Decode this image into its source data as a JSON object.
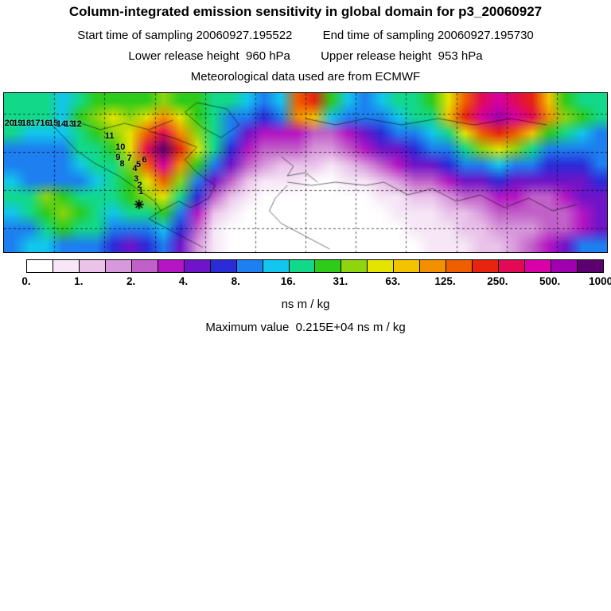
{
  "header": {
    "title": "Column-integrated emission sensitivity in global domain for p3_20060927",
    "start_time": "Start time of sampling 20060927.195522",
    "end_time": "End time of sampling 20060927.195730",
    "lower_release": "Lower release height  960 hPa",
    "upper_release": "Upper release height  953 hPa",
    "met_line": "Meteorological data used are from ECMWF"
  },
  "chart_data": {
    "type": "heatmap",
    "title": "Column-integrated emission sensitivity in global domain for p3_20060927",
    "units": "ns m / kg",
    "max_value_label": "Maximum value  0.215E+04 ns m / kg",
    "max_value": "0.215E+04",
    "layout": {
      "projection": "global cylindrical map, dashed graticule, black border",
      "legend_position": "bottom colorbar",
      "grid": "dashed"
    },
    "colorbar": {
      "tick_labels": [
        "0.",
        "1.",
        "2.",
        "4.",
        "8.",
        "16.",
        "31.",
        "63.",
        "125.",
        "250.",
        "500.",
        "1000."
      ],
      "levels": [
        0,
        1,
        2,
        4,
        8,
        16,
        31,
        63,
        125,
        250,
        500,
        1000
      ],
      "colors": [
        "#ffffff",
        "#f6e6f6",
        "#eac2ea",
        "#d898dc",
        "#c160c8",
        "#b515c2",
        "#6f14c8",
        "#2b2bd8",
        "#1d7ff0",
        "#12c6ee",
        "#12d98a",
        "#2ecb1a",
        "#8ed50f",
        "#e5e400",
        "#f3c300",
        "#f39000",
        "#ef5f00",
        "#e82410",
        "#e20a57",
        "#d800a6",
        "#a100b0",
        "#5c0070"
      ]
    },
    "grid": {
      "cols": 36,
      "rows": 10,
      "values": [
        [
          18,
          18,
          16,
          14,
          20,
          25,
          28,
          25,
          30,
          35,
          30,
          25,
          20,
          16,
          12,
          10,
          12,
          150,
          200,
          30,
          12,
          10,
          12,
          16,
          20,
          25,
          60,
          150,
          300,
          400,
          350,
          200,
          80,
          30,
          20,
          16
        ],
        [
          20,
          18,
          16,
          14,
          25,
          40,
          60,
          40,
          60,
          100,
          60,
          30,
          20,
          10,
          8,
          6,
          8,
          100,
          80,
          12,
          8,
          8,
          10,
          12,
          16,
          20,
          80,
          200,
          400,
          500,
          400,
          250,
          100,
          40,
          25,
          20
        ],
        [
          16,
          14,
          12,
          12,
          20,
          30,
          40,
          60,
          150,
          300,
          100,
          40,
          16,
          8,
          4,
          3,
          3,
          3,
          2,
          2,
          3,
          4,
          6,
          8,
          10,
          12,
          20,
          60,
          150,
          200,
          150,
          80,
          30,
          16,
          12,
          10
        ],
        [
          10,
          10,
          8,
          8,
          16,
          20,
          30,
          60,
          300,
          800,
          200,
          60,
          20,
          6,
          3,
          2,
          2,
          2,
          1.5,
          1.5,
          2,
          3,
          4,
          5,
          6,
          8,
          10,
          20,
          40,
          60,
          40,
          20,
          10,
          8,
          8,
          8
        ],
        [
          10,
          8,
          8,
          8,
          12,
          16,
          20,
          40,
          150,
          400,
          100,
          30,
          10,
          4,
          2,
          1.5,
          1,
          1,
          1,
          0.8,
          1,
          1.5,
          2,
          3,
          4,
          5,
          6,
          8,
          10,
          12,
          10,
          8,
          6,
          6,
          6,
          8
        ],
        [
          12,
          10,
          8,
          8,
          10,
          12,
          16,
          25,
          60,
          150,
          40,
          10,
          4,
          2,
          1,
          0.8,
          0.6,
          0.5,
          0.4,
          0.4,
          0.5,
          0.8,
          1,
          1.5,
          2,
          2.5,
          3,
          4,
          5,
          6,
          5,
          4,
          4,
          4,
          5,
          6
        ],
        [
          16,
          20,
          40,
          30,
          20,
          16,
          20,
          30,
          40,
          60,
          20,
          6,
          2,
          1,
          0.6,
          0.4,
          0.3,
          0.2,
          0.2,
          0.2,
          0.3,
          0.4,
          0.6,
          0.8,
          1,
          1.2,
          1.5,
          2,
          2.5,
          3,
          3,
          2.5,
          2.5,
          3,
          4,
          5
        ],
        [
          12,
          16,
          30,
          40,
          30,
          20,
          12,
          16,
          20,
          25,
          10,
          3,
          1,
          0.6,
          0.4,
          0.3,
          0.2,
          0.15,
          0.1,
          0.1,
          0.2,
          0.3,
          0.4,
          0.5,
          0.6,
          0.8,
          1,
          1.2,
          1.5,
          2,
          2,
          2,
          2,
          2.5,
          3,
          4
        ],
        [
          8,
          10,
          16,
          25,
          20,
          16,
          10,
          8,
          10,
          12,
          6,
          2,
          0.8,
          0.4,
          0.3,
          0.2,
          0.15,
          0.1,
          0.1,
          0.1,
          0.15,
          0.2,
          0.3,
          0.4,
          0.5,
          0.6,
          0.8,
          1,
          1.2,
          1.5,
          1.5,
          1.5,
          2,
          2.5,
          3,
          4
        ],
        [
          10,
          12,
          12,
          10,
          8,
          8,
          6,
          5,
          6,
          8,
          4,
          1.5,
          0.6,
          0.3,
          0.2,
          0.15,
          0.1,
          0.1,
          0.1,
          0.1,
          0.1,
          0.15,
          0.2,
          0.3,
          0.4,
          0.5,
          0.6,
          0.8,
          1,
          1.2,
          1.5,
          2,
          3,
          5,
          8,
          10
        ]
      ]
    },
    "trajectory": {
      "points": [
        {
          "label": "20",
          "x": 0.9,
          "y": 19
        },
        {
          "label": "19",
          "x": 2.3,
          "y": 19
        },
        {
          "label": "18",
          "x": 3.7,
          "y": 19
        },
        {
          "label": "17",
          "x": 5.2,
          "y": 19
        },
        {
          "label": "16",
          "x": 6.8,
          "y": 19
        },
        {
          "label": "15",
          "x": 8.2,
          "y": 19
        },
        {
          "label": "14",
          "x": 9.5,
          "y": 19.5
        },
        {
          "label": "13",
          "x": 10.8,
          "y": 19.5
        },
        {
          "label": "12",
          "x": 12.1,
          "y": 19.5
        },
        {
          "label": "11",
          "x": 17.5,
          "y": 27
        },
        {
          "label": "10",
          "x": 19.3,
          "y": 34
        },
        {
          "label": "9",
          "x": 18.9,
          "y": 40.5
        },
        {
          "label": "8",
          "x": 19.6,
          "y": 44.5
        },
        {
          "label": "7",
          "x": 20.8,
          "y": 41
        },
        {
          "label": "6",
          "x": 23.3,
          "y": 42
        },
        {
          "label": "5",
          "x": 22.3,
          "y": 45
        },
        {
          "label": "4",
          "x": 21.7,
          "y": 47.5
        },
        {
          "label": "3",
          "x": 21.9,
          "y": 54
        },
        {
          "label": "2",
          "x": 22.5,
          "y": 58
        },
        {
          "label": "1",
          "x": 22.7,
          "y": 62
        }
      ],
      "release_marker": {
        "x": 22.4,
        "y": 70,
        "symbol": "star"
      }
    }
  }
}
